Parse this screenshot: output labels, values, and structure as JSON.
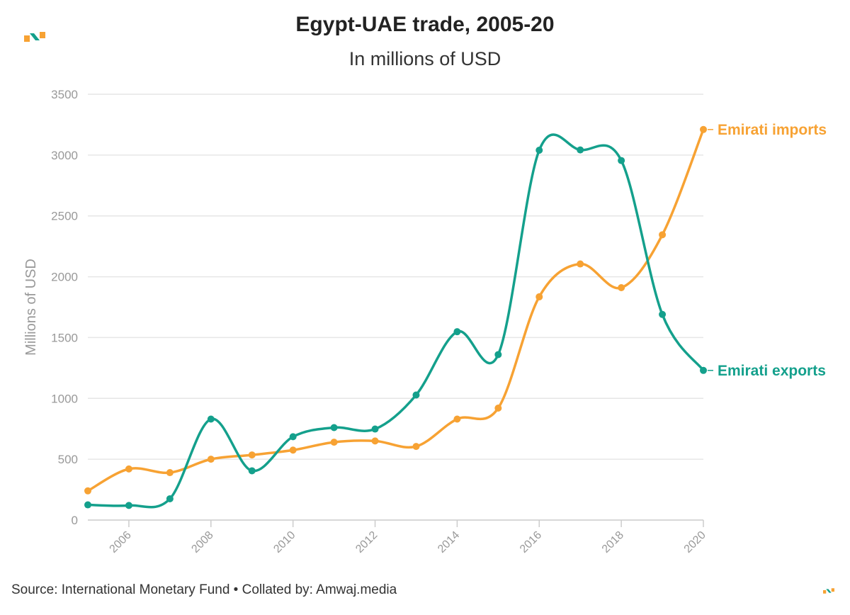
{
  "title": "Egypt-UAE trade, 2005-20",
  "subtitle": "In millions of USD",
  "source": "Source: International Monetary Fund • Collated by: Amwaj.media",
  "colors": {
    "exports": "#14a08c",
    "imports": "#f7a233",
    "grid": "#e6e6e6",
    "axis_text": "#999999"
  },
  "chart_data": {
    "type": "line",
    "title": "Egypt-UAE trade, 2005-20",
    "subtitle": "In millions of USD",
    "ylabel": "Millions of USD",
    "xlabel": "",
    "x": [
      2005,
      2006,
      2007,
      2008,
      2009,
      2010,
      2011,
      2012,
      2013,
      2014,
      2015,
      2016,
      2017,
      2018,
      2019,
      2020
    ],
    "xlim": [
      2005,
      2020
    ],
    "ylim": [
      0,
      3500
    ],
    "xticks": [
      2006,
      2008,
      2010,
      2012,
      2014,
      2016,
      2018,
      2020
    ],
    "yticks": [
      0,
      500,
      1000,
      1500,
      2000,
      2500,
      3000,
      3500
    ],
    "grid": true,
    "smooth": true,
    "series": [
      {
        "name": "Emirati imports",
        "color": "#f7a233",
        "values": [
          240,
          420,
          390,
          500,
          535,
          575,
          640,
          650,
          605,
          830,
          920,
          1835,
          2105,
          1910,
          2345,
          3210
        ]
      },
      {
        "name": "Emirati exports",
        "color": "#14a08c",
        "values": [
          125,
          120,
          175,
          830,
          405,
          685,
          760,
          748,
          1028,
          1548,
          1360,
          3040,
          3042,
          2955,
          1690,
          1230
        ]
      }
    ]
  }
}
